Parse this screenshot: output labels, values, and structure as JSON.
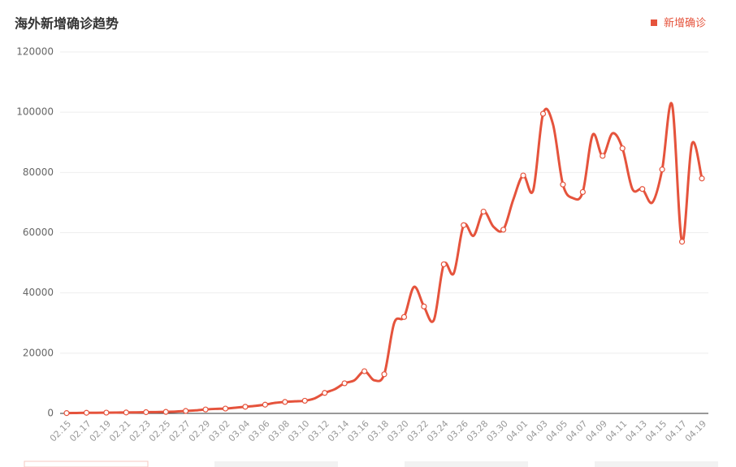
{
  "chart_data": {
    "type": "line",
    "title": "海外新增确诊趋势",
    "categories": [
      "02.15",
      null,
      "02.17",
      null,
      "02.19",
      null,
      "02.21",
      null,
      "02.23",
      null,
      "02.25",
      null,
      "02.27",
      null,
      "02.29",
      null,
      "03.02",
      null,
      "03.04",
      null,
      "03.06",
      null,
      "03.08",
      null,
      "03.10",
      null,
      "03.12",
      null,
      "03.14",
      null,
      "03.16",
      null,
      "03.18",
      null,
      "03.20",
      null,
      "03.22",
      null,
      "03.24",
      null,
      "03.26",
      null,
      "03.28",
      null,
      "03.30",
      null,
      "04.01",
      null,
      "04.03",
      null,
      "04.05",
      null,
      "04.07",
      null,
      "04.09",
      null,
      "04.11",
      null,
      "04.13",
      null,
      "04.15",
      null,
      "04.17",
      null,
      "04.19"
    ],
    "series": [
      {
        "name": "新增确诊",
        "color": "#e5533c",
        "values": [
          100,
          150,
          200,
          200,
          250,
          280,
          300,
          350,
          400,
          450,
          500,
          600,
          800,
          1000,
          1300,
          1500,
          1600,
          1900,
          2200,
          2500,
          2900,
          3500,
          3800,
          4000,
          4200,
          5000,
          6800,
          8000,
          10000,
          11000,
          14000,
          11000,
          13000,
          30000,
          32000,
          42000,
          35500,
          31000,
          49500,
          46500,
          62500,
          59000,
          67000,
          62000,
          61000,
          71000,
          79000,
          74000,
          99500,
          96000,
          76000,
          71500,
          73500,
          92500,
          85500,
          93000,
          88000,
          74500,
          74500,
          70000,
          81000,
          102500,
          57000,
          89500,
          78000
        ]
      }
    ],
    "ylim": [
      0,
      120000
    ],
    "yticks": [
      0,
      20000,
      40000,
      60000,
      80000,
      100000,
      120000
    ],
    "grid": true,
    "legend": "top-right"
  }
}
